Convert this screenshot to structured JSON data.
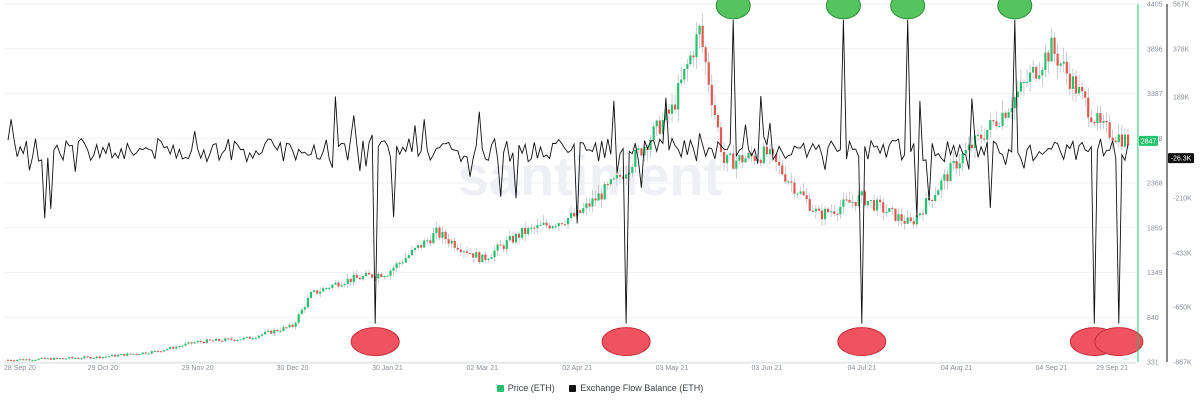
{
  "chart_data": {
    "type": "line",
    "subtype": "candlestick price + exchange flow balance line",
    "watermark": "santiment",
    "x_ticks": [
      "28 Sep 20",
      "29 Oct 20",
      "29 Nov 20",
      "30 Dec 20",
      "30 Jan 21",
      "02 Mar 21",
      "02 Apr 21",
      "03 May 21",
      "03 Jun 21",
      "04 Jul 21",
      "04 Aug 21",
      "04 Sep 21",
      "29 Sep 21"
    ],
    "left_axis": {
      "ticks": [
        "4405",
        "3896",
        "3387",
        "2878",
        "2368",
        "1859",
        "1349",
        "840",
        "331"
      ],
      "range": [
        331,
        4405
      ],
      "color": "#26c26d"
    },
    "right_axis": {
      "ticks": [
        "567K",
        "378K",
        "189K",
        "-210K",
        "-433K",
        "-650K",
        "-867K"
      ],
      "color": "#111111"
    },
    "badges": {
      "price": {
        "label": "2847",
        "color": "#26c26d"
      },
      "flow": {
        "label": "-26.3K",
        "color": "#111111"
      }
    },
    "series": [
      {
        "name": "Price (ETH)",
        "color": "#26c26d",
        "style": "candlestick",
        "points": [
          [
            "28 Sep 20",
            355
          ],
          [
            "15 Oct 20",
            370
          ],
          [
            "29 Oct 20",
            390
          ],
          [
            "15 Nov 20",
            450
          ],
          [
            "29 Nov 20",
            560
          ],
          [
            "15 Dec 20",
            600
          ],
          [
            "30 Dec 20",
            740
          ],
          [
            "05 Jan 21",
            1100
          ],
          [
            "15 Jan 21",
            1250
          ],
          [
            "30 Jan 21",
            1350
          ],
          [
            "15 Feb 21",
            1800
          ],
          [
            "02 Mar 21",
            1500
          ],
          [
            "15 Mar 21",
            1800
          ],
          [
            "02 Apr 21",
            2000
          ],
          [
            "15 Apr 21",
            2400
          ],
          [
            "03 May 21",
            3200
          ],
          [
            "12 May 21",
            4100
          ],
          [
            "20 May 21",
            2600
          ],
          [
            "03 Jun 21",
            2700
          ],
          [
            "20 Jun 21",
            2000
          ],
          [
            "04 Jul 21",
            2200
          ],
          [
            "20 Jul 21",
            1900
          ],
          [
            "04 Aug 21",
            2600
          ],
          [
            "20 Aug 21",
            3200
          ],
          [
            "04 Sep 21",
            3900
          ],
          [
            "20 Sep 21",
            3000
          ],
          [
            "29 Sep 21",
            2847
          ]
        ]
      },
      {
        "name": "Exchange Flow Balance (ETH)",
        "color": "#111111",
        "style": "line"
      }
    ],
    "annotations": [
      {
        "type": "outflow-spike",
        "color": "#f0525f",
        "date": "26 Jan 21"
      },
      {
        "type": "outflow-spike",
        "color": "#f0525f",
        "date": "18 Apr 21"
      },
      {
        "type": "outflow-spike",
        "color": "#f0525f",
        "date": "04 Jul 21"
      },
      {
        "type": "outflow-spike",
        "color": "#f0525f",
        "date": "18 Sep 21"
      },
      {
        "type": "outflow-spike",
        "color": "#f0525f",
        "date": "26 Sep 21"
      },
      {
        "type": "inflow-spike",
        "color": "#55c35e",
        "date": "23 May 21"
      },
      {
        "type": "inflow-spike",
        "color": "#55c35e",
        "date": "28 Jun 21"
      },
      {
        "type": "inflow-spike",
        "color": "#55c35e",
        "date": "19 Jul 21"
      },
      {
        "type": "inflow-spike",
        "color": "#55c35e",
        "date": "23 Aug 21"
      }
    ],
    "legend_position": "bottom-center",
    "grid": true
  },
  "legend": [
    {
      "label": "Price (ETH)",
      "color": "#26c26d"
    },
    {
      "label": "Exchange Flow Balance (ETH)",
      "color": "#111111"
    }
  ]
}
